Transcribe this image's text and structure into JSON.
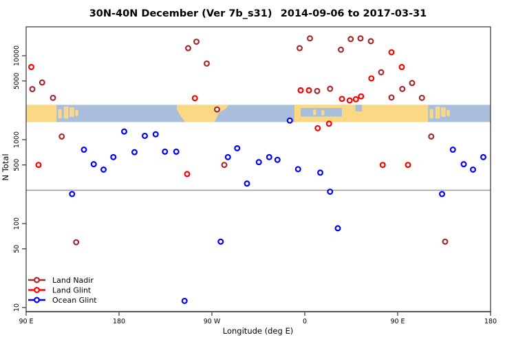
{
  "title": "30N-40N December (Ver 7b_s31)  2014-09-06 to 2017-03-31",
  "chart_data": {
    "type": "scatter",
    "xlabel": "Longitude (deg E)",
    "ylabel": "N Total",
    "y_scale": "log",
    "y_range": [
      8,
      22000
    ],
    "x_axis_note": "longitude axis starts at 90E and wraps eastward through 180, 90W, 0, 90E to 180 (values below are cumulative degrees 90-540)",
    "x_ticks": [
      {
        "label": "90 E",
        "lon": 90
      },
      {
        "label": "180",
        "lon": 180
      },
      {
        "label": "90 W",
        "lon": 270
      },
      {
        "label": "0",
        "lon": 360
      },
      {
        "label": "90 E",
        "lon": 450
      },
      {
        "label": "180",
        "lon": 540
      }
    ],
    "y_ticks": [
      {
        "label": "10000",
        "n": 10000
      },
      {
        "label": "5000",
        "n": 5000
      },
      {
        "label": "1000",
        "n": 1000
      },
      {
        "label": "500",
        "n": 500
      },
      {
        "label": "100",
        "n": 100
      },
      {
        "label": "50",
        "n": 50
      },
      {
        "label": "10",
        "n": 10
      }
    ],
    "reference_line_n": 250,
    "series": [
      {
        "name": "Land Nadir",
        "key": "land_nadir",
        "color": "#A52A2A",
        "points": [
          [
            105.5,
            4800
          ],
          [
            96,
            4000
          ],
          [
            116,
            3150
          ],
          [
            124.5,
            1090
          ],
          [
            138.5,
            60
          ],
          [
            255,
            14700
          ],
          [
            247,
            12300
          ],
          [
            265,
            8070
          ],
          [
            275,
            2290
          ],
          [
            282,
            500
          ],
          [
            365,
            16100
          ],
          [
            355,
            12300
          ],
          [
            372,
            3800
          ],
          [
            384.5,
            4040
          ],
          [
            404.5,
            15800
          ],
          [
            414,
            16100
          ],
          [
            424,
            14900
          ],
          [
            395,
            11800
          ],
          [
            434,
            6350
          ],
          [
            464,
            4730
          ],
          [
            454.5,
            4020
          ],
          [
            444,
            3180
          ],
          [
            473.5,
            3150
          ],
          [
            482.5,
            1090
          ],
          [
            496,
            61
          ]
        ]
      },
      {
        "name": "Land Glint",
        "key": "land_glint",
        "color": "#FF0000",
        "points": [
          [
            95,
            7340
          ],
          [
            102,
            500
          ],
          [
            253.5,
            3120
          ],
          [
            246,
            390
          ],
          [
            356,
            3870
          ],
          [
            364,
            3870
          ],
          [
            396,
            3060
          ],
          [
            403.5,
            2930
          ],
          [
            409.5,
            3030
          ],
          [
            414.5,
            3280
          ],
          [
            424.5,
            5370
          ],
          [
            383.5,
            1550
          ],
          [
            372.5,
            1370
          ],
          [
            444,
            11000
          ],
          [
            454,
            7340
          ],
          [
            435.5,
            500
          ],
          [
            460,
            500
          ]
        ]
      },
      {
        "name": "Ocean Glint",
        "key": "ocean_glint",
        "color": "#0000FF",
        "points": [
          [
            185,
            1250
          ],
          [
            205,
            1110
          ],
          [
            215.5,
            1160
          ],
          [
            146,
            760
          ],
          [
            195,
            710
          ],
          [
            174.5,
            620
          ],
          [
            155.5,
            510
          ],
          [
            165,
            440
          ],
          [
            224.5,
            720
          ],
          [
            235.5,
            720
          ],
          [
            294.5,
            790
          ],
          [
            285.5,
            620
          ],
          [
            315.5,
            540
          ],
          [
            325.5,
            620
          ],
          [
            333.5,
            575
          ],
          [
            353.5,
            445
          ],
          [
            375,
            405
          ],
          [
            345.5,
            1690
          ],
          [
            503.5,
            760
          ],
          [
            533,
            620
          ],
          [
            514,
            510
          ],
          [
            523,
            440
          ],
          [
            304,
            300
          ],
          [
            134.5,
            225
          ],
          [
            278.5,
            61
          ],
          [
            243.5,
            12
          ],
          [
            384.5,
            240
          ],
          [
            493,
            225
          ],
          [
            392,
            88
          ]
        ]
      }
    ],
    "map_band": {
      "description": "30N-40N world-map latitude strip drawn across the plot",
      "n_top": 2600,
      "n_bottom": 1620,
      "ocean_color": "#A9BEDB",
      "land_color": "#FAD884",
      "land_rects": [
        {
          "lon": [
            90,
            119.5
          ],
          "y": [
            0,
            1
          ]
        },
        {
          "lon": [
            121,
            124.5
          ],
          "y": [
            0.25,
            0.8
          ]
        },
        {
          "lon": [
            126.5,
            131
          ],
          "y": [
            0.1,
            0.8
          ]
        },
        {
          "lon": [
            132,
            136.5
          ],
          "y": [
            0.15,
            0.7
          ]
        },
        {
          "lon": [
            137.5,
            140.5
          ],
          "y": [
            0.3,
            0.65
          ]
        },
        {
          "lon": [
            350,
            479.5
          ],
          "y": [
            0,
            1
          ]
        },
        {
          "lon": [
            481,
            484.5
          ],
          "y": [
            0.25,
            0.8
          ]
        },
        {
          "lon": [
            486.5,
            491
          ],
          "y": [
            0.1,
            0.8
          ]
        },
        {
          "lon": [
            492,
            496.5
          ],
          "y": [
            0.15,
            0.7
          ]
        },
        {
          "lon": [
            497.5,
            500.5
          ],
          "y": [
            0.3,
            0.65
          ]
        }
      ],
      "north_america_polygon": [
        [
          236,
          0
        ],
        [
          286,
          0
        ],
        [
          284,
          0.2
        ],
        [
          277,
          0.45
        ],
        [
          272.5,
          1
        ],
        [
          244,
          1
        ],
        [
          238.5,
          0.55
        ],
        [
          236,
          0.25
        ]
      ],
      "sea_overlays": [
        {
          "lon": [
            356,
            396
          ],
          "y": [
            0.18,
            0.68
          ]
        },
        {
          "lon": [
            409,
            415.5
          ],
          "y": [
            0,
            0.38
          ]
        }
      ],
      "land_specks": [
        {
          "lon": [
            368,
            371
          ],
          "y": [
            0.28,
            0.6
          ]
        },
        {
          "lon": [
            376,
            379
          ],
          "y": [
            0.32,
            0.62
          ]
        }
      ]
    },
    "legend_position": "bottom-left"
  }
}
